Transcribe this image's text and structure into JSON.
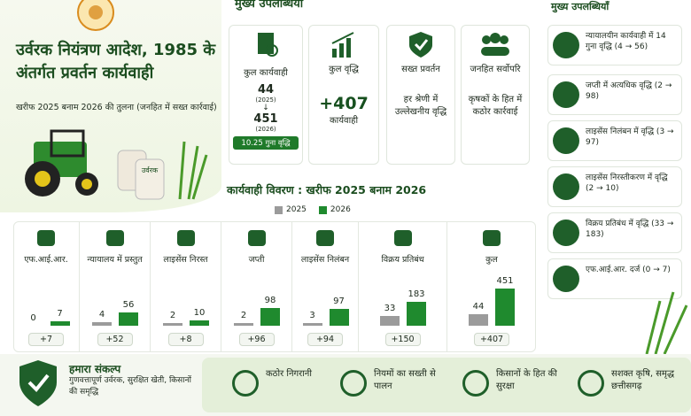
{
  "left": {
    "title": "उर्वरक नियंत्रण आदेश, 1985 के अंतर्गत प्रवर्तन कार्यवाही",
    "subtitle": "खरीफ 2025 बनाम 2026 की तुलना (जनहित में सख्त कार्रवाई)",
    "sack_label": "उर्वरक"
  },
  "highlights": {
    "title": "मुख्य उपलब्धियाँ",
    "cards": [
      {
        "title": "कुल कार्यवाही",
        "from": 44,
        "from_label": "(2025)",
        "to": 451,
        "to_label": "(2026)",
        "badge": "10.25 गुना वृद्धि"
      },
      {
        "title": "कुल वृद्धि",
        "value": "+407",
        "text": "कार्यवाही"
      },
      {
        "title": "सख्त प्रवर्तन",
        "text": "हर श्रेणी में उल्लेखनीय वृद्धि"
      },
      {
        "title": "जनहित सर्वोपरि",
        "text": "कृषकों के हित में कठोर कार्रवाई"
      }
    ]
  },
  "details": {
    "title": "कार्यवाही विवरण : खरीफ 2025 बनाम 2026",
    "legend": [
      {
        "name": "2025",
        "color": "#9b9b9b"
      },
      {
        "name": "2026",
        "color": "#1f8a2e"
      }
    ],
    "columns": [
      {
        "label": "एफ.आई.आर.",
        "v2025": 0,
        "v2026": 7,
        "change": "+7"
      },
      {
        "label": "न्यायालय में प्रस्तुत",
        "v2025": 4,
        "v2026": 56,
        "change": "+52"
      },
      {
        "label": "लाइसेंस निरस्त",
        "v2025": 2,
        "v2026": 10,
        "change": "+8"
      },
      {
        "label": "जप्ती",
        "v2025": 2,
        "v2026": 98,
        "change": "+96"
      },
      {
        "label": "लाइसेंस निलंबन",
        "v2025": 3,
        "v2026": 97,
        "change": "+94"
      },
      {
        "label": "विक्रय प्रतिबंध",
        "v2025": 33,
        "v2026": 183,
        "change": "+150"
      },
      {
        "label": "कुल",
        "v2025": 44,
        "v2026": 451,
        "change": "+407"
      }
    ]
  },
  "achievements": {
    "title": "मुख्य उपलब्धियाँ",
    "items": [
      "न्यायालयीन कार्यवाही में 14 गुना वृद्धि (4 → 56)",
      "जप्ती में अत्यधिक वृद्धि (2 → 98)",
      "लाइसेंस निलंबन में वृद्धि (3 → 97)",
      "लाइसेंस निरस्तीकरण में वृद्धि (2 → 10)",
      "विक्रय प्रतिबंध में वृद्धि (33 → 183)",
      "एफ.आई.आर. दर्ज (0 → 7)"
    ]
  },
  "footer": {
    "title": "हमारा संकल्प",
    "text": "गुणवत्तापूर्ण उर्वरक, सुरक्षित खेती, किसानों की समृद्धि",
    "items": [
      "कठोर निगरानी",
      "नियमों का सख्ती से पालन",
      "किसानों के हित की सुरक्षा",
      "सशक्त कृषि, समृद्ध छत्तीसगढ़"
    ]
  }
}
